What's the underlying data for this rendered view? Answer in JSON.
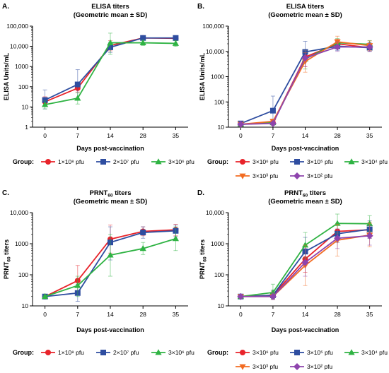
{
  "chart_data": [
    {
      "panel": "A.",
      "title": "ELISA titers",
      "subtitle": "(Geometric mean ± SD)",
      "type": "line",
      "ylabel": "ELISA Units/mL",
      "xlabel": "Days post-vaccination",
      "y_scale": "log",
      "ylim": [
        1,
        100000
      ],
      "yticks": [
        "1",
        "10",
        "100",
        "1000",
        "10,000",
        "100,000"
      ],
      "categories": [
        "0",
        "7",
        "14",
        "28",
        "35"
      ],
      "legend_title": "Group:",
      "series": [
        {
          "name": "1×10⁸ pfu",
          "color": "#e8232a",
          "marker": "circle",
          "values": [
            18,
            85,
            11000,
            26000,
            25000
          ],
          "err_lo": [
            12,
            55,
            6000,
            22000,
            21000
          ],
          "err_hi": [
            32,
            150,
            19000,
            31000,
            30000
          ]
        },
        {
          "name": "2×10⁷ pfu",
          "color": "#2e4da0",
          "marker": "square",
          "values": [
            22,
            130,
            9000,
            26000,
            26000
          ],
          "err_lo": [
            8,
            25,
            5000,
            20000,
            21000
          ],
          "err_hi": [
            70,
            700,
            16000,
            33000,
            32000
          ]
        },
        {
          "name": "3×10⁶ pfu",
          "color": "#2fb343",
          "marker": "triangle",
          "values": [
            13,
            27,
            15000,
            15000,
            14000
          ],
          "err_lo": [
            8,
            14,
            4000,
            11000,
            10000
          ],
          "err_hi": [
            20,
            50,
            45000,
            20000,
            19000
          ]
        }
      ]
    },
    {
      "panel": "B.",
      "title": "ELISA titers",
      "subtitle": "(Geometric mean ± SD)",
      "type": "line",
      "ylabel": "ELISA Units/mL",
      "xlabel": "Days post-vaccination",
      "y_scale": "log",
      "ylim": [
        10,
        100000
      ],
      "yticks": [
        "10",
        "100",
        "1000",
        "10,000",
        "100,000"
      ],
      "categories": [
        "0",
        "7",
        "14",
        "28",
        "35"
      ],
      "legend_title": "Group:",
      "series": [
        {
          "name": "3×10⁶ pfu",
          "color": "#e8232a",
          "marker": "circle",
          "values": [
            13,
            15,
            6000,
            20000,
            14000
          ],
          "err_lo": [
            11,
            12,
            2500,
            13000,
            10000
          ],
          "err_hi": [
            15,
            19,
            12000,
            30000,
            20000
          ]
        },
        {
          "name": "3×10⁵ pfu",
          "color": "#2e4da0",
          "marker": "square",
          "values": [
            14,
            45,
            9500,
            16000,
            14000
          ],
          "err_lo": [
            12,
            12,
            4000,
            11000,
            10000
          ],
          "err_hi": [
            16,
            170,
            25000,
            22000,
            19000
          ]
        },
        {
          "name": "3×10⁴ pfu",
          "color": "#2fb343",
          "marker": "triangle",
          "values": [
            13,
            15,
            5000,
            22000,
            19000
          ],
          "err_lo": [
            11,
            12,
            2000,
            15000,
            13000
          ],
          "err_hi": [
            15,
            18,
            11000,
            32000,
            27000
          ]
        },
        {
          "name": "3×10³ pfu",
          "color": "#f26b21",
          "marker": "triangle-down",
          "values": [
            13,
            17,
            4000,
            24000,
            17000
          ],
          "err_lo": [
            11,
            13,
            1500,
            15000,
            11000
          ],
          "err_hi": [
            15,
            21,
            9000,
            40000,
            26000
          ]
        },
        {
          "name": "3×10² pfu",
          "color": "#8e44ad",
          "marker": "diamond",
          "values": [
            13,
            14,
            5500,
            15000,
            15000
          ],
          "err_lo": [
            11,
            12,
            2500,
            10000,
            10000
          ],
          "err_hi": [
            15,
            16,
            11000,
            24000,
            22000
          ]
        }
      ]
    },
    {
      "panel": "C.",
      "title": "PRNT",
      "title_sub": "60",
      "title_suffix": " titers",
      "subtitle": "(Geometric mean ± SD)",
      "type": "line",
      "ylabel": "PRNT",
      "ylabel_sub": "60",
      "ylabel_suffix": " titers",
      "xlabel": "Days post-vaccination",
      "y_scale": "log",
      "ylim": [
        10,
        10000
      ],
      "yticks": [
        "10",
        "100",
        "1000",
        "10,000"
      ],
      "categories": [
        "0",
        "7",
        "14",
        "28",
        "35"
      ],
      "legend_title": "Group:",
      "series": [
        {
          "name": "1×10⁸ pfu",
          "color": "#e8232a",
          "marker": "circle",
          "values": [
            20,
            65,
            1400,
            2500,
            2800
          ],
          "err_lo": [
            18,
            30,
            500,
            1800,
            1800
          ],
          "err_hi": [
            22,
            200,
            4000,
            3500,
            4200
          ]
        },
        {
          "name": "2×10⁷ pfu",
          "color": "#2e4da0",
          "marker": "square",
          "values": [
            20,
            26,
            1100,
            2300,
            2600
          ],
          "err_lo": [
            18,
            14,
            300,
            1500,
            1700
          ],
          "err_hi": [
            22,
            50,
            3500,
            3500,
            4000
          ]
        },
        {
          "name": "3×10⁶ pfu",
          "color": "#2fb343",
          "marker": "triangle",
          "values": [
            20,
            45,
            430,
            700,
            1450
          ],
          "err_lo": [
            18,
            20,
            90,
            450,
            600
          ],
          "err_hi": [
            22,
            90,
            2000,
            1100,
            3500
          ]
        }
      ]
    },
    {
      "panel": "D.",
      "title": "PRNT",
      "title_sub": "60",
      "title_suffix": " titers",
      "subtitle": "(Geometric mean ± SD)",
      "type": "line",
      "ylabel": "PRNT",
      "ylabel_sub": "60",
      "ylabel_suffix": " titers",
      "xlabel": "Days post-vaccination",
      "y_scale": "log",
      "ylim": [
        10,
        10000
      ],
      "yticks": [
        "10",
        "100",
        "1000",
        "10,000"
      ],
      "categories": [
        "0",
        "7",
        "14",
        "28",
        "35"
      ],
      "legend_title": "Group:",
      "series": [
        {
          "name": "3×10⁶ pfu",
          "color": "#e8232a",
          "marker": "circle",
          "values": [
            20,
            22,
            320,
            2500,
            2800
          ],
          "err_lo": [
            18,
            17,
            120,
            1300,
            1500
          ],
          "err_hi": [
            22,
            30,
            900,
            4500,
            5000
          ]
        },
        {
          "name": "3×10⁵ pfu",
          "color": "#2e4da0",
          "marker": "square",
          "values": [
            20,
            22,
            560,
            2100,
            2900
          ],
          "err_lo": [
            18,
            17,
            200,
            1100,
            1500
          ],
          "err_hi": [
            22,
            32,
            1600,
            4000,
            5500
          ]
        },
        {
          "name": "3×10⁴ pfu",
          "color": "#2fb343",
          "marker": "triangle",
          "values": [
            20,
            27,
            900,
            4500,
            4400
          ],
          "err_lo": [
            18,
            17,
            350,
            2200,
            2500
          ],
          "err_hi": [
            22,
            50,
            2300,
            9000,
            8000
          ]
        },
        {
          "name": "3×10³ pfu",
          "color": "#f26b21",
          "marker": "triangle-down",
          "values": [
            20,
            20,
            200,
            1300,
            1900
          ],
          "err_lo": [
            18,
            16,
            45,
            400,
            800
          ],
          "err_hi": [
            22,
            26,
            900,
            4200,
            4500
          ]
        },
        {
          "name": "3×10² pfu",
          "color": "#8e44ad",
          "marker": "diamond",
          "values": [
            20,
            20,
            250,
            1500,
            1800
          ],
          "err_lo": [
            18,
            16,
            90,
            700,
            900
          ],
          "err_hi": [
            22,
            26,
            700,
            3000,
            3800
          ]
        }
      ]
    }
  ]
}
